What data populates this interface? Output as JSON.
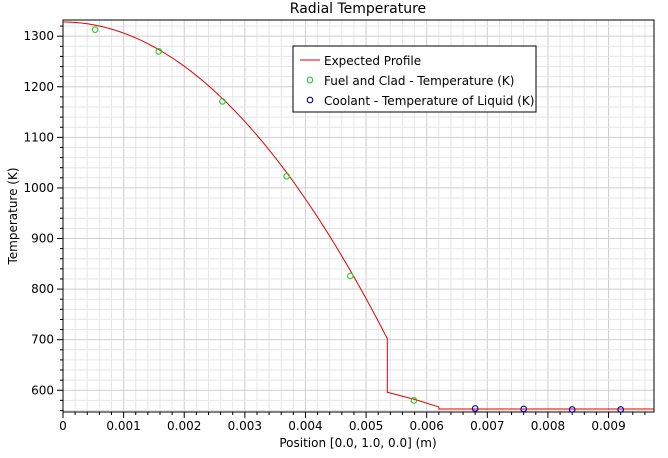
{
  "chart_data": {
    "type": "line",
    "title": "Radial Temperature",
    "xlabel": "Position [0.0, 1.0, 0.0] (m)",
    "ylabel": "Temperature (K)",
    "xlim": [
      0,
      0.00975
    ],
    "ylim": [
      557,
      1332
    ],
    "x_ticks": [
      0,
      0.001,
      0.002,
      0.003,
      0.004,
      0.005,
      0.006,
      0.007,
      0.008,
      0.009
    ],
    "x_tick_labels": [
      "0",
      "0.001",
      "0.002",
      "0.003",
      "0.004",
      "0.005",
      "0.006",
      "0.007",
      "0.008",
      "0.009"
    ],
    "y_ticks": [
      600,
      700,
      800,
      900,
      1000,
      1100,
      1200,
      1300
    ],
    "y_tick_labels": [
      "600",
      "700",
      "800",
      "900",
      "1000",
      "1100",
      "1200",
      "1300"
    ],
    "grid": true,
    "legend_position": "top-right",
    "series": [
      {
        "name": "Expected Profile",
        "kind": "line",
        "color": "#e00000",
        "x": [
          0,
          0.0005,
          0.001,
          0.0015,
          0.002,
          0.0025,
          0.003,
          0.0035,
          0.004,
          0.0045,
          0.005,
          0.00535,
          0.00535,
          0.0058,
          0.0062,
          0.0062,
          0.00975
        ],
        "y": [
          1328,
          1322,
          1304,
          1274,
          1232,
          1178,
          1112,
          1034,
          944,
          842,
          728,
          702,
          596,
          582,
          567,
          563,
          563
        ]
      },
      {
        "name": "Fuel and Clad - Temperature (K)",
        "kind": "scatter",
        "color": "#22cc22",
        "x": [
          0.00053,
          0.00158,
          0.00263,
          0.00369,
          0.00474,
          0.00579
        ],
        "y": [
          1313,
          1270,
          1171,
          1023,
          826,
          580
        ]
      },
      {
        "name": "Coolant - Temperature of Liquid (K)",
        "kind": "scatter",
        "color": "#0000aa",
        "x": [
          0.0068,
          0.0076,
          0.0084,
          0.0092
        ],
        "y": [
          564,
          563,
          562,
          562
        ]
      }
    ]
  }
}
